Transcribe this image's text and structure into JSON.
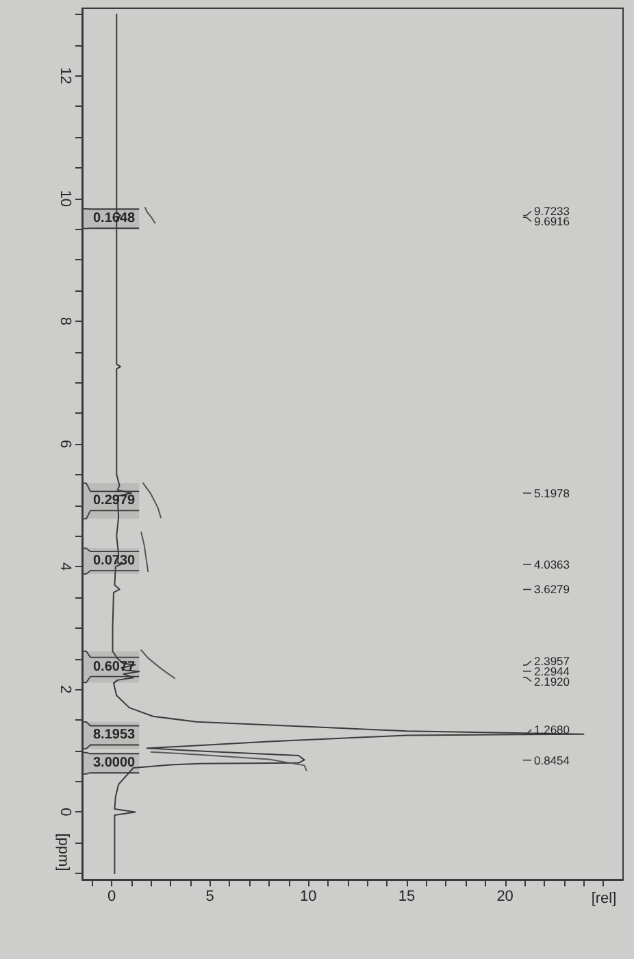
{
  "chart_data": {
    "type": "line",
    "xlabel": "[rel]",
    "ylabel": "[ppm]",
    "xlim": [
      -1.5,
      26
    ],
    "ylim": [
      -1.1,
      13.1
    ],
    "y2lim": [
      -1.1,
      13.1
    ],
    "xticks": [
      {
        "value": -1,
        "label": null
      },
      0,
      {
        "value": 1,
        "label": null
      },
      {
        "value": 2,
        "label": null
      },
      {
        "value": 3,
        "label": null
      },
      {
        "value": 4,
        "label": null
      },
      5,
      {
        "value": 6,
        "label": null
      },
      {
        "value": 7,
        "label": null
      },
      {
        "value": 8,
        "label": null
      },
      {
        "value": 9,
        "label": null
      },
      10,
      {
        "value": 11,
        "label": null
      },
      {
        "value": 12,
        "label": null
      },
      {
        "value": 13,
        "label": null
      },
      {
        "value": 14,
        "label": null
      },
      15,
      {
        "value": 16,
        "label": null
      },
      {
        "value": 17,
        "label": null
      },
      {
        "value": 18,
        "label": null
      },
      {
        "value": 19,
        "label": null
      },
      20,
      {
        "value": 21,
        "label": null
      },
      {
        "value": 22,
        "label": null
      },
      {
        "value": 23,
        "label": null
      },
      {
        "value": 24,
        "label": null
      },
      {
        "value": 25,
        "label": null
      }
    ],
    "yticks": [
      {
        "value": -1,
        "label": null
      },
      {
        "value": -0.5,
        "label": null
      },
      0,
      {
        "value": 0.5,
        "label": null
      },
      {
        "value": 1,
        "label": null
      },
      {
        "value": 1.5,
        "label": null
      },
      2,
      {
        "value": 2.5,
        "label": null
      },
      {
        "value": 3,
        "label": null
      },
      {
        "value": 3.5,
        "label": null
      },
      4,
      {
        "value": 4.5,
        "label": null
      },
      {
        "value": 5,
        "label": null
      },
      {
        "value": 5.5,
        "label": null
      },
      6,
      {
        "value": 6.5,
        "label": null
      },
      {
        "value": 7,
        "label": null
      },
      {
        "value": 7.5,
        "label": null
      },
      8,
      {
        "value": 8.5,
        "label": null
      },
      {
        "value": 9,
        "label": null
      },
      {
        "value": 9.5,
        "label": null
      },
      10,
      {
        "value": 10.5,
        "label": null
      },
      {
        "value": 11,
        "label": null
      },
      {
        "value": 11.5,
        "label": null
      },
      12,
      {
        "value": 12.5,
        "label": null
      },
      {
        "value": 13,
        "label": null
      }
    ],
    "y2ticks": [
      9.7233,
      9.6916,
      5.1978,
      4.0363,
      3.6279,
      2.3957,
      2.2944,
      {
        "value": 2.192,
        "label": "2.1920"
      },
      {
        "value": 1.268,
        "label": "1.2680"
      },
      0.8454
    ],
    "marker": "none",
    "series": [
      {
        "color": "#3b3b3b",
        "x": [
          0.25,
          0.25,
          0.45,
          0.3,
          0.4,
          0.25,
          0.25,
          0.45,
          0.25,
          0.25,
          0.4,
          0.3,
          1.0,
          0.3,
          0.35,
          0.25,
          0.35,
          0.3,
          0.5,
          0.2,
          0.15,
          0.4,
          0.1,
          0.05,
          0.05,
          0.3,
          0.6,
          1.2,
          0.5,
          0.7,
          1.4,
          0.6,
          1.1,
          0.3,
          0.1,
          0.25,
          0.9,
          2.1,
          4.3,
          15,
          24,
          15,
          8,
          1.8,
          4.7,
          9.5,
          9.8,
          9.5,
          4.5,
          3.0,
          1.1,
          0.35,
          0.2,
          0.15,
          1.2,
          0.15,
          0.15
        ],
        "values": [
          13.0,
          9.78,
          9.72,
          9.7,
          9.69,
          9.65,
          7.3,
          7.26,
          7.22,
          5.5,
          5.32,
          5.25,
          5.2,
          5.15,
          4.8,
          4.5,
          4.2,
          4.06,
          4.04,
          4.0,
          3.7,
          3.63,
          3.58,
          3.0,
          2.62,
          2.5,
          2.42,
          2.4,
          2.35,
          2.31,
          2.29,
          2.25,
          2.19,
          2.15,
          2.1,
          1.9,
          1.7,
          1.56,
          1.47,
          1.32,
          1.27,
          1.25,
          1.15,
          1.04,
          0.99,
          0.92,
          0.85,
          0.8,
          0.79,
          0.77,
          0.72,
          0.45,
          0.25,
          0.05,
          0.0,
          -0.05,
          -1.0
        ]
      },
      {
        "color": "#555555",
        "x": [
          1.7,
          1.8,
          2.0,
          2.2
        ],
        "values": [
          9.85,
          9.78,
          9.7,
          9.6
        ]
      },
      {
        "color": "#565656",
        "x": [
          1.6,
          2.0,
          2.35,
          2.5
        ],
        "values": [
          5.36,
          5.18,
          4.96,
          4.8
        ]
      },
      {
        "color": "#575757",
        "x": [
          1.5,
          1.65,
          1.85
        ],
        "values": [
          4.56,
          4.36,
          3.92
        ]
      },
      {
        "color": "#585858",
        "x": [
          1.5,
          1.85,
          2.5,
          3.2
        ],
        "values": [
          2.64,
          2.51,
          2.34,
          2.18
        ]
      },
      {
        "color": "#595959",
        "x": [
          2.0,
          4.7,
          8.0,
          9.8,
          9.9
        ],
        "values": [
          0.98,
          0.93,
          0.86,
          0.76,
          0.68
        ]
      }
    ],
    "bands": [
      {
        "axis": "y",
        "from": 9.83,
        "to": 9.51,
        "label": "0.1648"
      },
      {
        "axis": "y",
        "from": 5.36,
        "to": 4.78,
        "label": "0.2979"
      },
      {
        "axis": "y",
        "from": 4.3,
        "to": 3.88,
        "label": "0.0730"
      },
      {
        "axis": "y",
        "from": 2.62,
        "to": 2.11,
        "label": "0.6077"
      },
      {
        "axis": "y",
        "from": 1.47,
        "to": 1.03,
        "label": "8.1953"
      },
      {
        "axis": "y",
        "from": 0.97,
        "to": 0.62,
        "label": "3.0000"
      }
    ]
  }
}
